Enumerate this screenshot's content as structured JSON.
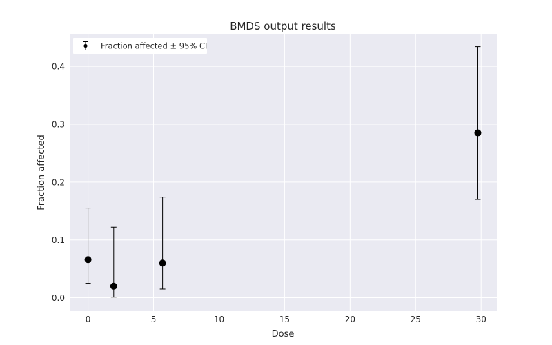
{
  "chart_data": {
    "type": "scatter",
    "title": "BMDS output results",
    "xlabel": "Dose",
    "ylabel": "Fraction affected",
    "xlim": [
      -1.4,
      31.2
    ],
    "ylim": [
      -0.022,
      0.455
    ],
    "xticks": [
      0,
      5,
      10,
      15,
      20,
      25,
      30
    ],
    "yticks": [
      0.0,
      0.1,
      0.2,
      0.3,
      0.4
    ],
    "grid": true,
    "legend_position": "top-left",
    "series": [
      {
        "name": "Fraction affected ± 95% CI",
        "color": "#000000",
        "points": [
          {
            "x": 0,
            "y": 0.066,
            "lower": 0.025,
            "upper": 0.155
          },
          {
            "x": 1.96,
            "y": 0.02,
            "lower": 0.001,
            "upper": 0.122
          },
          {
            "x": 5.69,
            "y": 0.06,
            "lower": 0.015,
            "upper": 0.174
          },
          {
            "x": 29.75,
            "y": 0.285,
            "lower": 0.17,
            "upper": 0.434
          }
        ]
      }
    ],
    "colors": {
      "plot_background": "#EAEAF2",
      "grid": "#FFFFFF",
      "marker": "#000000"
    }
  }
}
